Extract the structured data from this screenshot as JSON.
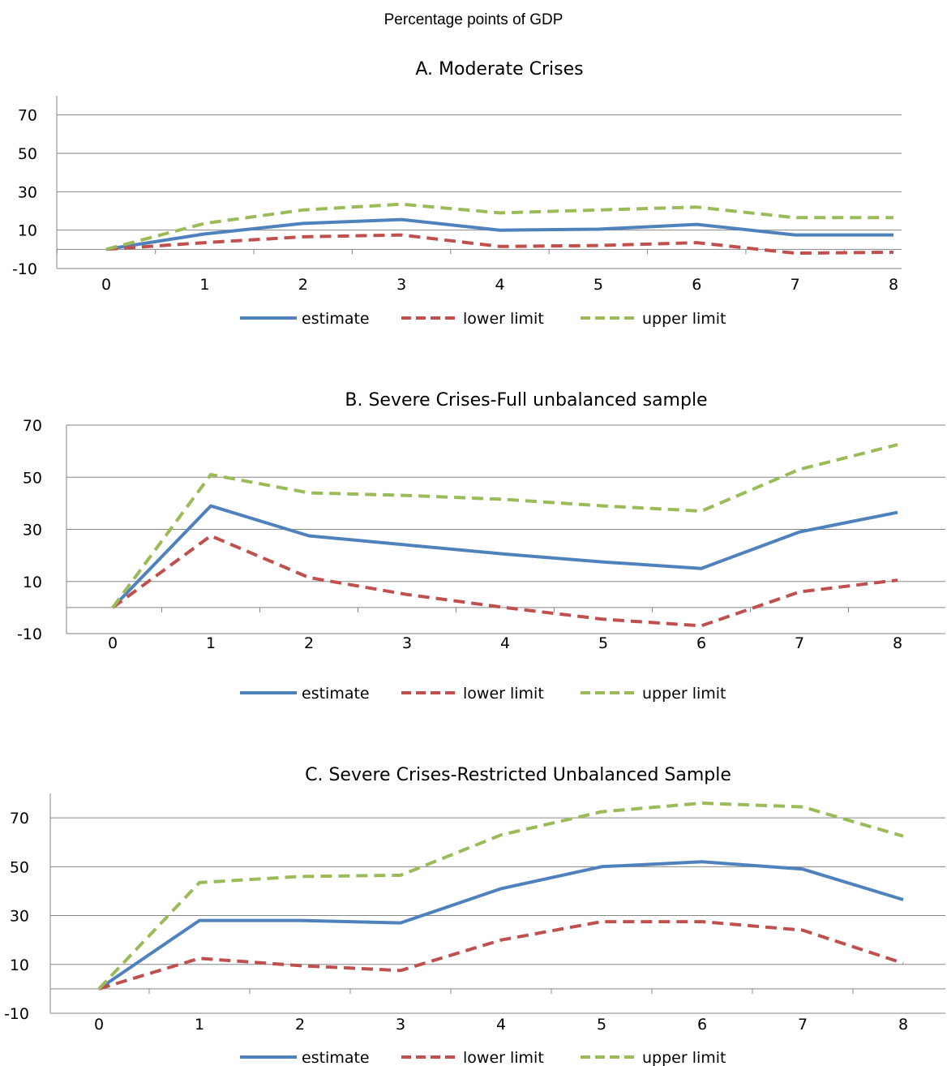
{
  "page_title": "Percentage points of GDP",
  "colors": {
    "estimate": "#4f81bd",
    "lower": "#c0504d",
    "upper": "#9bbb59",
    "grid": "#868686"
  },
  "chart_data": [
    {
      "type": "line",
      "title": "A. Moderate Crises",
      "x": [
        0,
        1,
        2,
        3,
        4,
        5,
        6,
        7,
        8
      ],
      "yticks": [
        -10,
        10,
        30,
        50,
        70
      ],
      "ylim": [
        -10,
        80
      ],
      "grid": true,
      "legend_position": "bottom",
      "series": [
        {
          "name": "estimate",
          "values": [
            0,
            8,
            13.5,
            15.5,
            10,
            10.5,
            13,
            7.5,
            7.5
          ]
        },
        {
          "name": "lower limit",
          "values": [
            0,
            3.5,
            6.5,
            7.5,
            1.5,
            2,
            3.5,
            -2,
            -1.5
          ]
        },
        {
          "name": "upper limit",
          "values": [
            0,
            13.5,
            20.5,
            23.5,
            19,
            20.5,
            22,
            16.5,
            16.5
          ]
        }
      ]
    },
    {
      "type": "line",
      "title": "B. Severe Crises-Full unbalanced sample",
      "x": [
        0,
        1,
        2,
        3,
        4,
        5,
        6,
        7,
        8
      ],
      "yticks": [
        -10,
        10,
        30,
        50,
        70
      ],
      "ylim": [
        -10,
        70
      ],
      "grid": true,
      "legend_position": "bottom",
      "series": [
        {
          "name": "estimate",
          "values": [
            0,
            39,
            27.5,
            24,
            20.5,
            17.5,
            15,
            29,
            36.5
          ]
        },
        {
          "name": "lower limit",
          "values": [
            0,
            27.5,
            11.5,
            5,
            0,
            -4.5,
            -7,
            6,
            10.5
          ]
        },
        {
          "name": "upper limit",
          "values": [
            0,
            51,
            44,
            43,
            41.5,
            39,
            37,
            53,
            62.5
          ]
        }
      ]
    },
    {
      "type": "line",
      "title": "C. Severe Crises-Restricted Unbalanced Sample",
      "x": [
        0,
        1,
        2,
        3,
        4,
        5,
        6,
        7,
        8
      ],
      "yticks": [
        -10,
        10,
        30,
        50,
        70
      ],
      "ylim": [
        -10,
        80
      ],
      "grid": true,
      "legend_position": "bottom",
      "series": [
        {
          "name": "estimate",
          "values": [
            0,
            28,
            28,
            27,
            41,
            50,
            52,
            49,
            36.5
          ]
        },
        {
          "name": "lower limit",
          "values": [
            0,
            12.5,
            9.5,
            7.5,
            20,
            27.5,
            27.5,
            24,
            10.5
          ]
        },
        {
          "name": "upper limit",
          "values": [
            0,
            43.5,
            46,
            46.5,
            63,
            72.5,
            76,
            74.5,
            62.5
          ]
        }
      ]
    }
  ]
}
